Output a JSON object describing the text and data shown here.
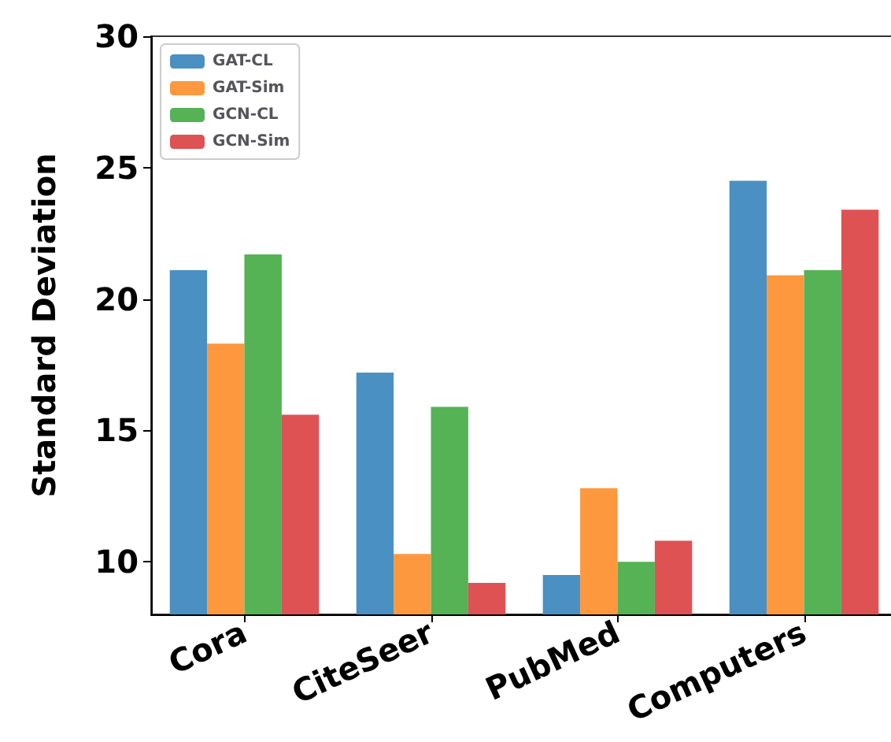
{
  "chart_data": {
    "type": "bar",
    "ylabel": "Standard Deviation",
    "categories": [
      "Cora",
      "CiteSeer",
      "PubMed",
      "Computers"
    ],
    "series": [
      {
        "name": "GAT-CL",
        "color": "#4a90c2",
        "values": [
          21.1,
          17.2,
          9.5,
          24.5
        ]
      },
      {
        "name": "GAT-Sim",
        "color": "#fe983e",
        "values": [
          18.3,
          10.3,
          12.8,
          20.9
        ]
      },
      {
        "name": "GCN-CL",
        "color": "#55b255",
        "values": [
          21.7,
          15.9,
          10.0,
          21.1
        ]
      },
      {
        "name": "GCN-Sim",
        "color": "#de5254",
        "values": [
          15.6,
          9.2,
          10.8,
          23.4
        ]
      }
    ],
    "ylim": [
      8,
      30
    ],
    "yticks": [
      10,
      15,
      20,
      25,
      30
    ],
    "legend": "top left",
    "grid": false
  }
}
